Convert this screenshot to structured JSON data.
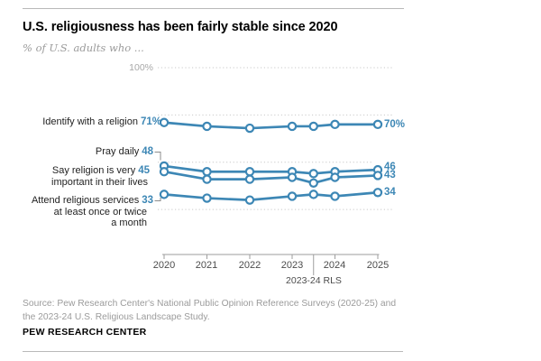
{
  "header": {
    "title": "U.S. religiousness has been fairly stable since 2020",
    "subtitle": "% of U.S. adults who ..."
  },
  "axis_labels": {
    "top_grid": "100%"
  },
  "series_labels": {
    "identify": {
      "text": "Identify with a religion",
      "value": "71%"
    },
    "pray": {
      "text": "Pray daily",
      "value": "48"
    },
    "important": {
      "line1": "Say religion is very",
      "value": "45",
      "line2": "important in their lives"
    },
    "attend": {
      "line1": "Attend religious services",
      "value": "33",
      "line2": "at least once or twice",
      "line3": "a month"
    }
  },
  "end_labels": {
    "identify": "70%",
    "pray": "46",
    "important": "43",
    "attend": "34"
  },
  "x_axis": {
    "years": [
      "2020",
      "2021",
      "2022",
      "2023",
      "2024",
      "2025"
    ],
    "note": "2023-24 RLS"
  },
  "footer": {
    "source_line1": "Source: Pew Research Center's National Public Opinion Reference Surveys (2020-25) and",
    "source_line2": "the 2023-24 U.S. Religious Landscape Study.",
    "brand": "PEW RESEARCH CENTER"
  },
  "colors": {
    "line_blue": "#3d87b5",
    "grid_gray": "#c9c9c9",
    "axis_gray": "#9e9e9e",
    "connector_gray": "#8c8c8c"
  },
  "chart_data": {
    "type": "line",
    "title": "U.S. religiousness has been fairly stable since 2020",
    "subtitle": "% of U.S. adults who ...",
    "categories": [
      "2020",
      "2021",
      "2022",
      "2023",
      "2023-24 RLS",
      "2024",
      "2025"
    ],
    "ylim": [
      0,
      100
    ],
    "gridlines": [
      100,
      75,
      50,
      25
    ],
    "grid_top_label": "100%",
    "legend_position": "left-of-lines",
    "grid_style": "dotted",
    "series": [
      {
        "name": "Identify with a religion",
        "values": [
          71,
          69,
          68,
          69,
          69,
          70,
          70
        ],
        "start_label": "71%",
        "end_label": "70%"
      },
      {
        "name": "Pray daily",
        "values": [
          48,
          45,
          45,
          45,
          44,
          45,
          46
        ],
        "start_label": "48",
        "end_label": "46"
      },
      {
        "name": "Say religion is very important in their lives",
        "values": [
          45,
          41,
          41,
          42,
          39,
          42,
          43
        ],
        "start_label": "45",
        "end_label": "43"
      },
      {
        "name": "Attend religious services at least once or twice a month",
        "values": [
          33,
          31,
          30,
          32,
          33,
          32,
          34
        ],
        "start_label": "33",
        "end_label": "34"
      }
    ],
    "x_axis_note_between": [
      "2023",
      "2024"
    ],
    "x_axis_note": "2023-24 RLS"
  }
}
